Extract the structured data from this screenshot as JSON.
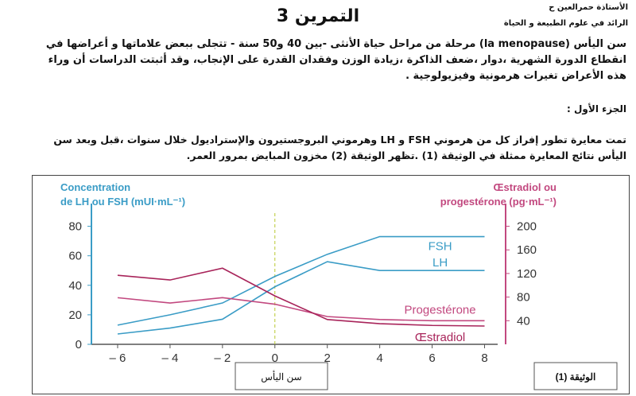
{
  "header": {
    "teacher": "الأستاذة حمرالعين ح",
    "subject": "الرائد في علوم الطبيعة و الحياة",
    "title": "التمرين 3"
  },
  "intro": "سن اليأس (la menopause) مرحلة من مراحل حياة الأنثى -بين 40 و50 سنة - تتجلى ببعض علاماتها و أعراضها في انقطاع الدورة الشهرية ،دوار ،ضعف الذاكرة ،زيادة الوزن وفقدان القدرة على الإنجاب، وقد أثبتت الدراسات أن وراء هذه الأعراض تغيرات هرمونية وفيزيولوجية .",
  "part1": {
    "title": "الجزء الأول :",
    "text": "تمت معايرة تطور إفراز كل من هرموني FSH و LH وهرموني البروجستيرون والإستراديول خلال سنوات ،قبل وبعد سن اليأس نتائج المعايرة ممثلة في الوثيقة (1) .تظهر الوثيقة (2) مخزون المبايض بمرور العمر."
  },
  "chart_data": {
    "type": "line",
    "ylabel": [
      "Concentration",
      "de LH ou FSH (mUI·mL⁻¹)"
    ],
    "y2label": [
      "Œstradiol ou",
      "progestérone (pg·mL⁻¹)"
    ],
    "xlabel": "سن اليأس",
    "doc_label": "الوثيقة (1)",
    "x": [
      -6,
      -4,
      -2,
      0,
      2,
      4,
      6,
      8
    ],
    "xlim": [
      -7,
      8.5
    ],
    "xticks": [
      {
        "value": -6,
        "label": "– 6"
      },
      {
        "value": -4,
        "label": "– 4"
      },
      {
        "value": -2,
        "label": "– 2"
      },
      0,
      2,
      4,
      6,
      8
    ],
    "ylim": [
      0,
      90
    ],
    "yticks": [
      0,
      20,
      40,
      60,
      80
    ],
    "y2lim": [
      0,
      225
    ],
    "y2ticks": [
      40,
      80,
      120,
      160,
      200
    ],
    "series": [
      {
        "name": "FSH",
        "color": "#3a9cc6",
        "values": [
          13,
          20,
          28,
          46,
          61,
          73,
          73,
          73
        ]
      },
      {
        "name": "LH",
        "color": "#3a9cc6",
        "values": [
          7,
          11,
          17,
          39,
          56,
          50,
          50,
          50
        ]
      },
      {
        "name": "Progestérone",
        "color": "#c2487f",
        "axis": "y2",
        "values": [
          79,
          70,
          79,
          68,
          47,
          42,
          40,
          40
        ]
      },
      {
        "name": "Œstradiol",
        "color": "#a8245a",
        "axis": "y2",
        "values": [
          117,
          109,
          129,
          82,
          42,
          35,
          32,
          31
        ]
      }
    ]
  }
}
